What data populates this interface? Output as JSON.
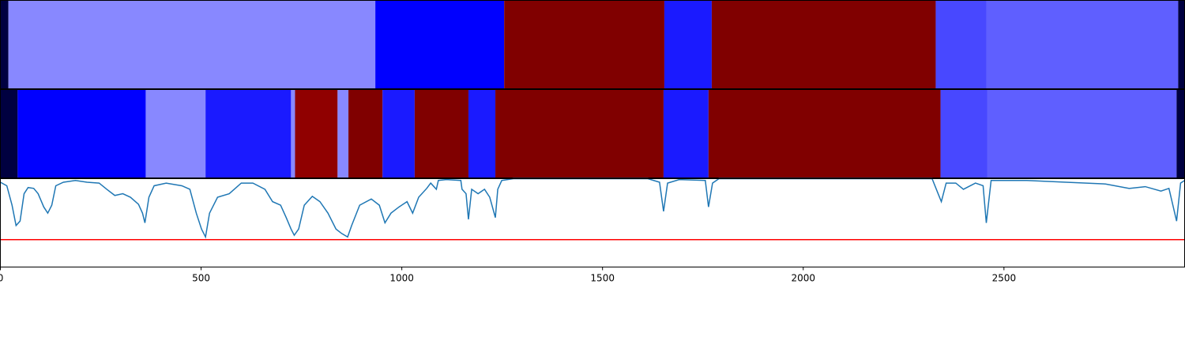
{
  "chart_data": [
    {
      "type": "segments",
      "xlim": [
        0,
        2950
      ],
      "segments": [
        {
          "start": 0,
          "end": 20,
          "color": "#000040"
        },
        {
          "start": 20,
          "end": 934,
          "color": "#8888ff"
        },
        {
          "start": 934,
          "end": 1255,
          "color": "#0000ff"
        },
        {
          "start": 1255,
          "end": 1654,
          "color": "#800000"
        },
        {
          "start": 1654,
          "end": 1772,
          "color": "#1a1aff"
        },
        {
          "start": 1772,
          "end": 2330,
          "color": "#800000"
        },
        {
          "start": 2330,
          "end": 2456,
          "color": "#4848ff"
        },
        {
          "start": 2456,
          "end": 2934,
          "color": "#5f5fff"
        },
        {
          "start": 2934,
          "end": 2950,
          "color": "#000040"
        }
      ]
    },
    {
      "type": "segments",
      "xlim": [
        0,
        2950
      ],
      "segments": [
        {
          "start": 0,
          "end": 43,
          "color": "#000040"
        },
        {
          "start": 43,
          "end": 362,
          "color": "#0000ff"
        },
        {
          "start": 362,
          "end": 511,
          "color": "#8888ff"
        },
        {
          "start": 511,
          "end": 724,
          "color": "#1a1aff"
        },
        {
          "start": 724,
          "end": 734,
          "color": "#8888ff"
        },
        {
          "start": 734,
          "end": 840,
          "color": "#900000"
        },
        {
          "start": 840,
          "end": 867,
          "color": "#8888ff"
        },
        {
          "start": 867,
          "end": 952,
          "color": "#800000"
        },
        {
          "start": 952,
          "end": 1032,
          "color": "#1a1aff"
        },
        {
          "start": 1032,
          "end": 1166,
          "color": "#800000"
        },
        {
          "start": 1166,
          "end": 1233,
          "color": "#1a1aff"
        },
        {
          "start": 1233,
          "end": 1652,
          "color": "#800000"
        },
        {
          "start": 1652,
          "end": 1764,
          "color": "#1a1aff"
        },
        {
          "start": 1764,
          "end": 2342,
          "color": "#800000"
        },
        {
          "start": 2342,
          "end": 2458,
          "color": "#4848ff"
        },
        {
          "start": 2458,
          "end": 2930,
          "color": "#5f5fff"
        },
        {
          "start": 2930,
          "end": 2950,
          "color": "#000040"
        }
      ]
    },
    {
      "type": "line",
      "xlim": [
        0,
        2950
      ],
      "ylim": [
        0,
        1
      ],
      "xticks": [
        0,
        500,
        1000,
        1500,
        2000,
        2500
      ],
      "x": [
        0,
        16,
        29,
        39,
        49,
        59,
        69,
        83,
        94,
        108,
        118,
        128,
        138,
        157,
        187,
        216,
        246,
        265,
        285,
        305,
        324,
        344,
        354,
        360,
        370,
        383,
        413,
        452,
        472,
        488,
        501,
        511,
        521,
        541,
        570,
        600,
        629,
        659,
        678,
        698,
        712,
        724,
        732,
        743,
        757,
        777,
        796,
        816,
        836,
        850,
        865,
        875,
        895,
        924,
        944,
        958,
        973,
        993,
        1013,
        1027,
        1042,
        1062,
        1072,
        1086,
        1091,
        1111,
        1147,
        1150,
        1160,
        1166,
        1174,
        1190,
        1206,
        1219,
        1233,
        1239,
        1249,
        1278,
        1613,
        1642,
        1652,
        1662,
        1691,
        1756,
        1764,
        1774,
        1790,
        2321,
        2336,
        2344,
        2356,
        2380,
        2399,
        2429,
        2448,
        2456,
        2468,
        2557,
        2655,
        2753,
        2812,
        2852,
        2891,
        2911,
        2930,
        2940,
        2950
      ],
      "series": [
        {
          "color": "#1f77b4",
          "values": [
            0.96,
            0.92,
            0.7,
            0.47,
            0.52,
            0.83,
            0.9,
            0.89,
            0.83,
            0.68,
            0.61,
            0.7,
            0.92,
            0.96,
            0.98,
            0.96,
            0.95,
            0.88,
            0.81,
            0.83,
            0.79,
            0.71,
            0.61,
            0.5,
            0.79,
            0.92,
            0.95,
            0.92,
            0.88,
            0.61,
            0.43,
            0.34,
            0.61,
            0.79,
            0.83,
            0.95,
            0.95,
            0.88,
            0.74,
            0.7,
            0.56,
            0.43,
            0.36,
            0.43,
            0.7,
            0.8,
            0.74,
            0.61,
            0.43,
            0.38,
            0.34,
            0.47,
            0.7,
            0.77,
            0.7,
            0.5,
            0.61,
            0.68,
            0.74,
            0.61,
            0.79,
            0.89,
            0.95,
            0.88,
            0.98,
            0.99,
            0.98,
            0.88,
            0.83,
            0.54,
            0.88,
            0.83,
            0.88,
            0.79,
            0.56,
            0.88,
            0.98,
            1.0,
            1.0,
            0.96,
            0.63,
            0.95,
            0.99,
            0.98,
            0.68,
            0.95,
            1.0,
            1.0,
            0.83,
            0.74,
            0.95,
            0.95,
            0.88,
            0.95,
            0.92,
            0.5,
            0.98,
            0.98,
            0.96,
            0.94,
            0.89,
            0.91,
            0.86,
            0.89,
            0.52,
            0.95,
            0.98
          ]
        }
      ],
      "hline": {
        "value": 0.31,
        "color": "#ff0000"
      }
    }
  ]
}
